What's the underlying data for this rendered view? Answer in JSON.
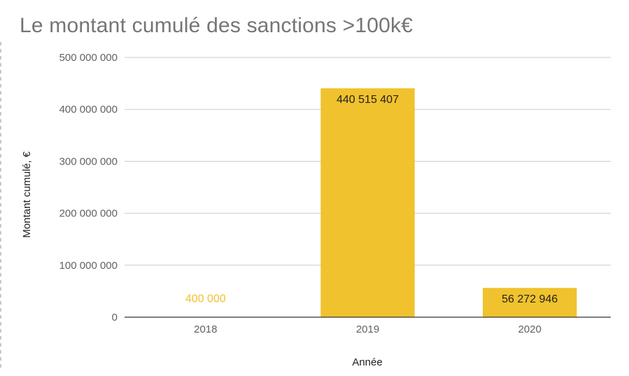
{
  "colors": {
    "bar": "#f0c22d",
    "grid": "#cccccc",
    "baseline": "#333333",
    "label_dark": "#222222",
    "label_light": "#f0c22d"
  },
  "chart_data": {
    "type": "bar",
    "title": "Le montant cumulé des sanctions >100k€",
    "xlabel": "Année",
    "ylabel": "Montant cumulé, €",
    "categories": [
      "2018",
      "2019",
      "2020"
    ],
    "values": [
      400000,
      440515407,
      56272946
    ],
    "data_labels": [
      "400 000",
      "440 515 407",
      "56 272 946"
    ],
    "ylim": [
      0,
      500000000
    ],
    "yticks": [
      0,
      100000000,
      200000000,
      300000000,
      400000000,
      500000000
    ],
    "ytick_labels": [
      "0",
      "100 000 000",
      "200 000 000",
      "300 000 000",
      "400 000 000",
      "500 000 000"
    ],
    "grid": true,
    "legend": "none"
  }
}
